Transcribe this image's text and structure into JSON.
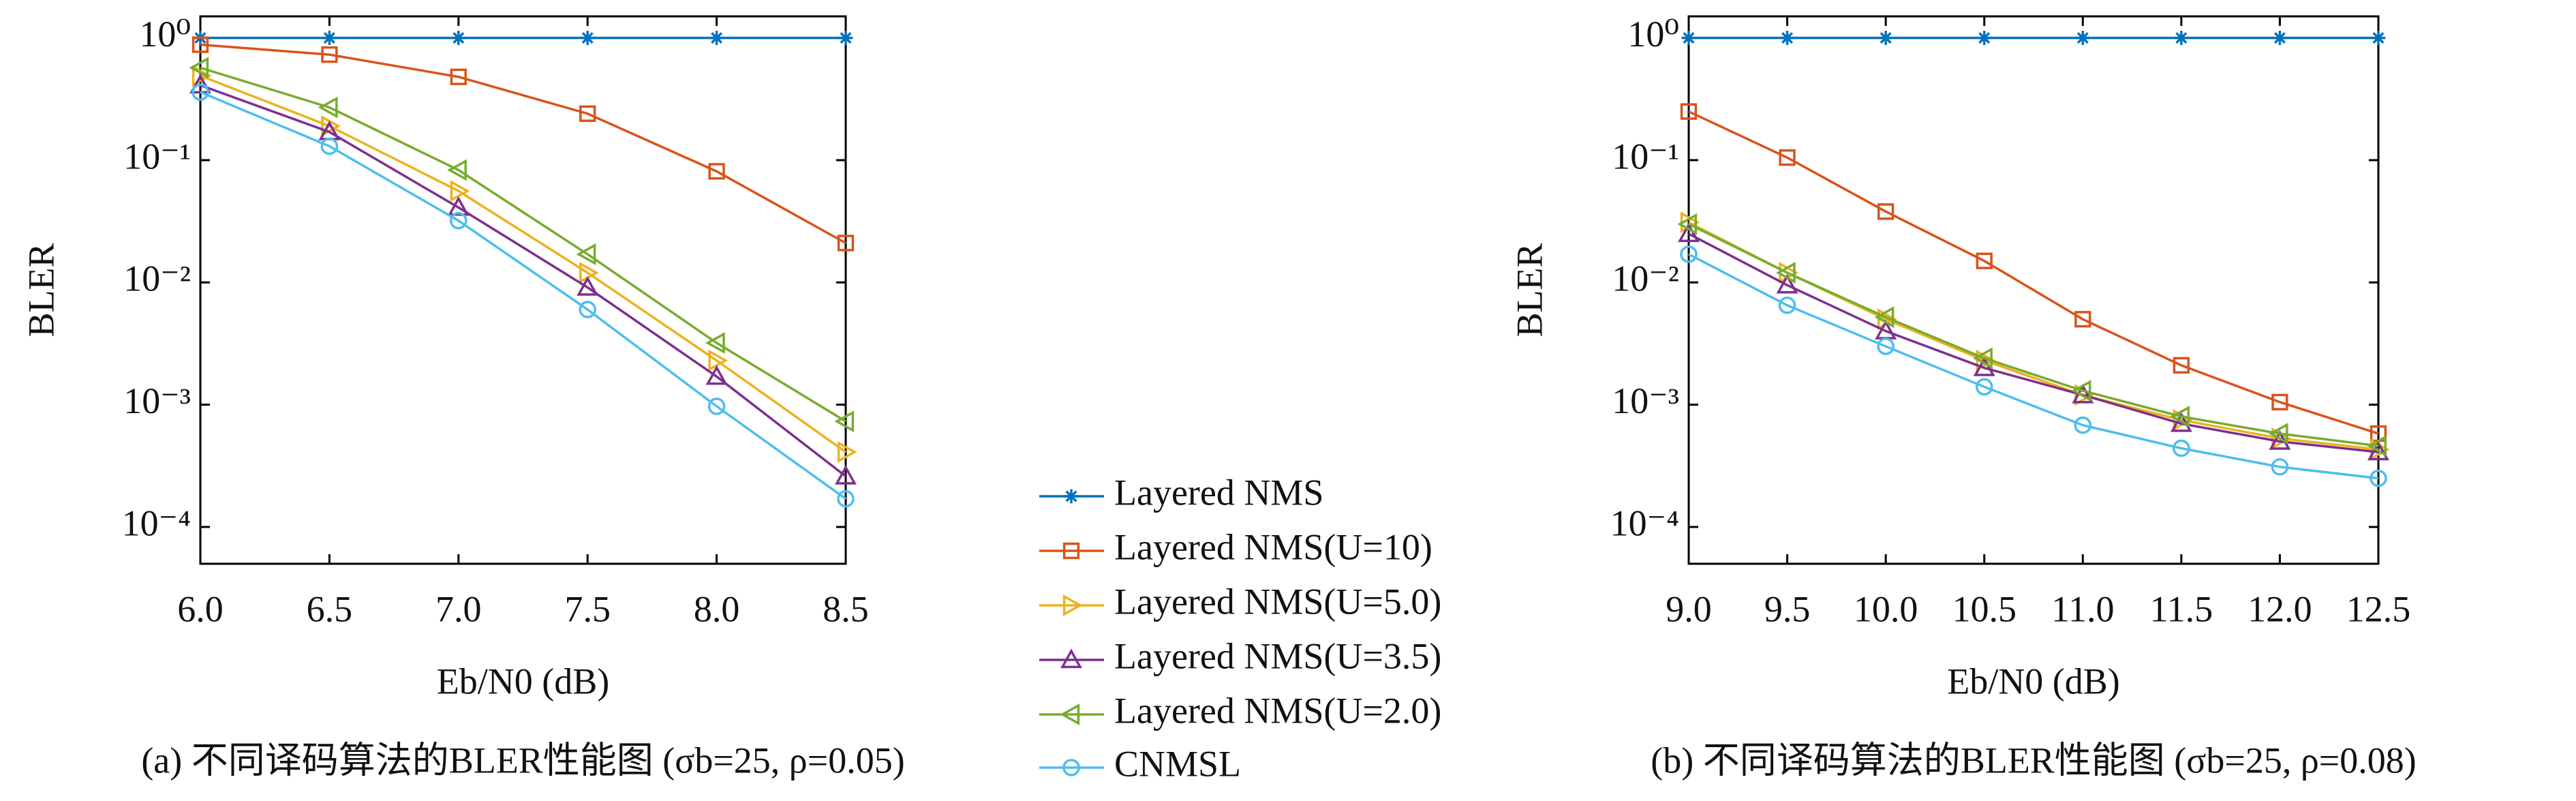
{
  "chart_data": [
    {
      "type": "line",
      "caption": "(a) 不同译码算法的BLER性能图 (σb=25, ρ=0.05)",
      "xlabel": "Eb/N0 (dB)",
      "ylabel": "BLER",
      "yscale": "log",
      "grid": false,
      "x": [
        6,
        6.5,
        7,
        7.5,
        8,
        8.5
      ],
      "xlim": [
        6,
        8.5
      ],
      "xticks": [
        {
          "value": 6,
          "label": "6.0"
        },
        6.5,
        {
          "value": 7,
          "label": "7.0"
        },
        7.5,
        {
          "value": 8,
          "label": "8.0"
        },
        8.5
      ],
      "ylim": [
        5e-05,
        1.5
      ],
      "yticks": [
        {
          "value": 1,
          "label": "10⁰"
        },
        {
          "value": 0.1,
          "label": "10⁻¹"
        },
        {
          "value": 0.01,
          "label": "10⁻²"
        },
        {
          "value": 0.001,
          "label": "10⁻³"
        },
        {
          "value": 0.0001,
          "label": "10⁻⁴"
        }
      ],
      "series": [
        {
          "name": "Layered NMS",
          "color": "#0072bd",
          "marker": "star",
          "values": [
            1,
            1,
            1,
            1,
            1,
            1
          ]
        },
        {
          "name": "Layered NMS(U=10)",
          "color": "#d95319",
          "marker": "square",
          "values": [
            0.88,
            0.73,
            0.48,
            0.24,
            0.081,
            0.021
          ]
        },
        {
          "name": "Layered NMS(U=5.0)",
          "color": "#edb120",
          "marker": "triangle-right",
          "values": [
            0.49,
            0.19,
            0.056,
            0.012,
            0.0023,
            0.00041
          ]
        },
        {
          "name": "Layered NMS(U=3.5)",
          "color": "#7e2f8e",
          "marker": "triangle-up",
          "values": [
            0.41,
            0.17,
            0.041,
            0.0091,
            0.0017,
            0.00026
          ]
        },
        {
          "name": "Layered NMS(U=2.0)",
          "color": "#77ac30",
          "marker": "triangle-left",
          "values": [
            0.57,
            0.27,
            0.083,
            0.017,
            0.0032,
            0.00073
          ]
        },
        {
          "name": "CNMSL",
          "color": "#4dbeee",
          "marker": "circle",
          "values": [
            0.36,
            0.13,
            0.032,
            0.006,
            0.00097,
            0.00017
          ]
        }
      ]
    },
    {
      "type": "line",
      "caption": "(b) 不同译码算法的BLER性能图 (σb=25, ρ=0.08)",
      "xlabel": "Eb/N0 (dB)",
      "ylabel": "BLER",
      "yscale": "log",
      "grid": false,
      "x": [
        9,
        9.5,
        10,
        10.5,
        11,
        11.5,
        12,
        12.5
      ],
      "xlim": [
        9,
        12.5
      ],
      "xticks": [
        {
          "value": 9,
          "label": "9.0"
        },
        9.5,
        {
          "value": 10,
          "label": "10.0"
        },
        10.5,
        {
          "value": 11,
          "label": "11.0"
        },
        11.5,
        {
          "value": 12,
          "label": "12.0"
        },
        12.5
      ],
      "ylim": [
        5e-05,
        1.5
      ],
      "yticks": [
        {
          "value": 1,
          "label": "10⁰"
        },
        {
          "value": 0.1,
          "label": "10⁻¹"
        },
        {
          "value": 0.01,
          "label": "10⁻²"
        },
        {
          "value": 0.001,
          "label": "10⁻³"
        },
        {
          "value": 0.0001,
          "label": "10⁻⁴"
        }
      ],
      "series": [
        {
          "color": "#0072bd",
          "marker": "star",
          "values": [
            1,
            1,
            1,
            1,
            1,
            1,
            1,
            1
          ]
        },
        {
          "color": "#d95319",
          "marker": "square",
          "values": [
            0.25,
            0.105,
            0.038,
            0.015,
            0.005,
            0.0021,
            0.00105,
            0.00058
          ]
        },
        {
          "color": "#edb120",
          "marker": "triangle-right",
          "values": [
            0.031,
            0.012,
            0.005,
            0.0023,
            0.0012,
            0.00075,
            0.00053,
            0.00043
          ]
        },
        {
          "color": "#7e2f8e",
          "marker": "triangle-up",
          "values": [
            0.025,
            0.0095,
            0.004,
            0.002,
            0.0012,
            0.0007,
            0.0005,
            0.00041
          ]
        },
        {
          "color": "#77ac30",
          "marker": "triangle-left",
          "values": [
            0.03,
            0.012,
            0.0052,
            0.0024,
            0.0013,
            0.0008,
            0.00058,
            0.00046
          ]
        },
        {
          "color": "#4dbeee",
          "marker": "circle",
          "values": [
            0.017,
            0.0065,
            0.003,
            0.0014,
            0.00068,
            0.00044,
            0.00031,
            0.00025
          ]
        }
      ]
    }
  ]
}
